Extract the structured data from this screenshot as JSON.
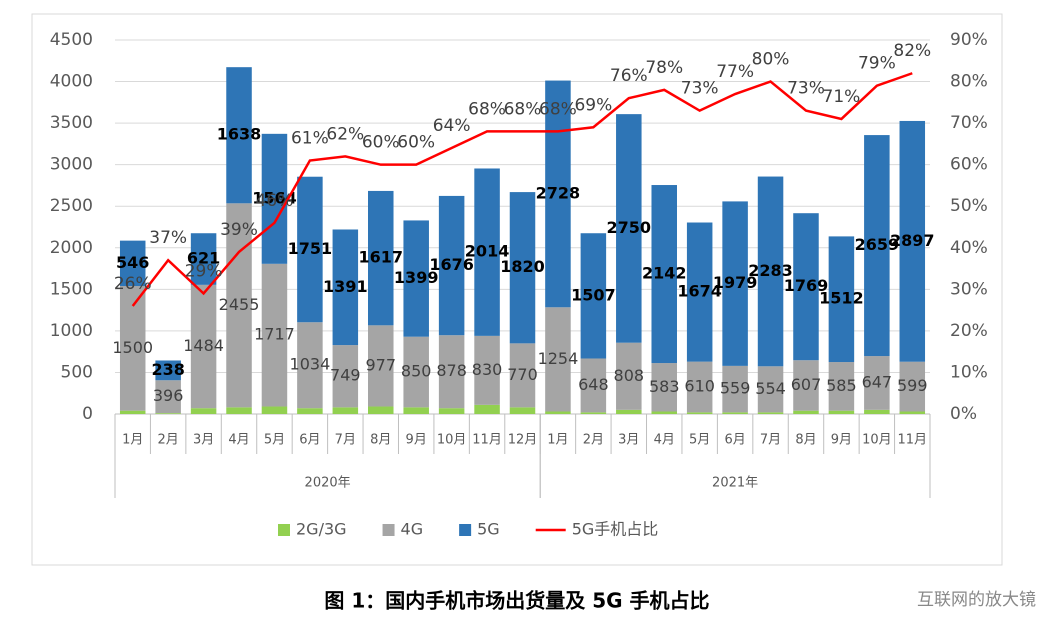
{
  "chart_data": {
    "type": "bar-line",
    "title": "图 1：国内手机市场出货量及 5G 手机占比",
    "watermark": "互联网的放大镜",
    "category_groups": [
      {
        "name": "2020年",
        "categories": [
          "1月",
          "2月",
          "3月",
          "4月",
          "5月",
          "6月",
          "7月",
          "8月",
          "9月",
          "10月",
          "11月",
          "12月"
        ]
      },
      {
        "name": "2021年",
        "categories": [
          "1月",
          "2月",
          "3月",
          "4月",
          "5月",
          "6月",
          "7月",
          "8月",
          "9月",
          "10月",
          "11月"
        ]
      }
    ],
    "series": [
      {
        "name": "2G/3G",
        "color": "#92d050",
        "stacked": true,
        "show_labels": false,
        "values": [
          40,
          10,
          70,
          80,
          90,
          70,
          80,
          90,
          80,
          70,
          110,
          80,
          30,
          20,
          50,
          30,
          20,
          20,
          20,
          40,
          40,
          50,
          30
        ]
      },
      {
        "name": "4G",
        "color": "#a5a5a5",
        "stacked": true,
        "show_labels": true,
        "values": [
          1500,
          396,
          1484,
          2455,
          1717,
          1034,
          749,
          977,
          850,
          878,
          830,
          770,
          1254,
          648,
          808,
          583,
          610,
          559,
          554,
          607,
          585,
          647,
          599
        ]
      },
      {
        "name": "5G",
        "color": "#2e75b6",
        "stacked": true,
        "show_labels": true,
        "values": [
          546,
          238,
          621,
          1638,
          1564,
          1751,
          1391,
          1617,
          1399,
          1676,
          2014,
          1820,
          2728,
          1507,
          2750,
          2142,
          1674,
          1979,
          2283,
          1769,
          1512,
          2659,
          2897
        ]
      },
      {
        "name": "5G手机占比",
        "color": "#ff0000",
        "type": "line",
        "axis": "y2",
        "values": [
          26,
          37,
          29,
          39,
          46,
          61,
          62,
          60,
          60,
          64,
          68,
          68,
          68,
          69,
          76,
          78,
          73,
          77,
          80,
          73,
          71,
          79,
          82
        ],
        "value_labels": [
          "26%",
          "37%",
          "29%",
          "39%",
          "46%",
          "61%",
          "62%",
          "60%",
          "60%",
          "64%",
          "68%",
          "68%",
          "68%",
          "69%",
          "76%",
          "78%",
          "73%",
          "77%",
          "80%",
          "73%",
          "71%",
          "79%",
          "82%"
        ]
      }
    ],
    "ylim": [
      0,
      4500
    ],
    "yticks": [
      0,
      500,
      1000,
      1500,
      2000,
      2500,
      3000,
      3500,
      4000,
      4500
    ],
    "y2lim": [
      0,
      90
    ],
    "y2ticks": [
      {
        "value": 0,
        "label": "0%"
      },
      {
        "value": 10,
        "label": "10%"
      },
      {
        "value": 20,
        "label": "20%"
      },
      {
        "value": 30,
        "label": "30%"
      },
      {
        "value": 40,
        "label": "40%"
      },
      {
        "value": 50,
        "label": "50%"
      },
      {
        "value": 60,
        "label": "60%"
      },
      {
        "value": 70,
        "label": "70%"
      },
      {
        "value": 80,
        "label": "80%"
      },
      {
        "value": 90,
        "label": "90%"
      }
    ],
    "grid": true,
    "legend": "bottom"
  }
}
